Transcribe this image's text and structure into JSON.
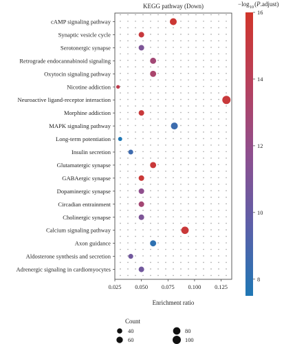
{
  "chart_data": {
    "type": "scatter",
    "title": "KEGG pathway (Down)",
    "xlabel": "Enrichment ratio",
    "xlim": [
      0.025,
      0.135
    ],
    "xticks": [
      "0.025",
      "0.050",
      "0.075",
      "0.100",
      "0.125"
    ],
    "grid": "dotted",
    "categories": [
      "cAMP signaling pathway",
      "Synaptic vesicle cycle",
      "Serotonergic synapse",
      "Retrograde endocannabinoid signaling",
      "Oxytocin signaling pathway",
      "Nicotine addiction",
      "Neuroactive ligand-receptor interaction",
      "Morphine addiction",
      "MAPK signaling pathway",
      "Long-term potentiation",
      "Insulin secretion",
      "Glutamatergic synapse",
      "GABAergic synapse",
      "Dopaminergic synapse",
      "Circadian entrainment",
      "Cholinergic synapse",
      "Calcium signaling pathway",
      "Axon guidance",
      "Aldosterone synthesis and secretion",
      "Adrenergic signaling in cardiomyocytes"
    ],
    "points": [
      {
        "x": 0.08,
        "count": 70,
        "color_value": 15.6
      },
      {
        "x": 0.05,
        "count": 45,
        "color_value": 15.2
      },
      {
        "x": 0.05,
        "count": 45,
        "color_value": 11.0
      },
      {
        "x": 0.061,
        "count": 55,
        "color_value": 12.8
      },
      {
        "x": 0.061,
        "count": 55,
        "color_value": 13.2
      },
      {
        "x": 0.028,
        "count": 20,
        "color_value": 14.5
      },
      {
        "x": 0.13,
        "count": 100,
        "color_value": 15.3
      },
      {
        "x": 0.05,
        "count": 45,
        "color_value": 15.3
      },
      {
        "x": 0.081,
        "count": 70,
        "color_value": 8.5
      },
      {
        "x": 0.03,
        "count": 25,
        "color_value": 7.5
      },
      {
        "x": 0.04,
        "count": 35,
        "color_value": 8.6
      },
      {
        "x": 0.061,
        "count": 55,
        "color_value": 15.4
      },
      {
        "x": 0.05,
        "count": 45,
        "color_value": 15.5
      },
      {
        "x": 0.05,
        "count": 45,
        "color_value": 11.8
      },
      {
        "x": 0.05,
        "count": 45,
        "color_value": 12.9
      },
      {
        "x": 0.05,
        "count": 45,
        "color_value": 11.0
      },
      {
        "x": 0.091,
        "count": 80,
        "color_value": 15.4
      },
      {
        "x": 0.061,
        "count": 55,
        "color_value": 8.0
      },
      {
        "x": 0.04,
        "count": 35,
        "color_value": 10.5
      },
      {
        "x": 0.05,
        "count": 45,
        "color_value": 10.5
      }
    ],
    "colorbar": {
      "label_main": "−log",
      "label_sub": "10",
      "label_open": "(",
      "label_italic": "P",
      "label_rest": ".adjust)",
      "range": [
        7.5,
        16
      ],
      "ticks": [
        "8",
        "10",
        "12",
        "14",
        "16"
      ],
      "low_color": "#2166ac",
      "high_color": "#d73027"
    },
    "size_legend": {
      "title": "Count",
      "entries": [
        "40",
        "60",
        "80",
        "100"
      ]
    }
  }
}
